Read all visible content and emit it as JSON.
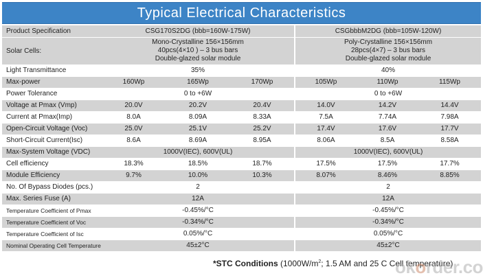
{
  "header": {
    "title": "Typical Electrical Characteristics"
  },
  "rows": [
    {
      "label": "Product Specification",
      "style": "g",
      "left": "CSG170S2DG (bbb=160W-175W)",
      "right": "CSGbbbM2DG (bbb=105W-120W)"
    },
    {
      "label": "Solar Cells:",
      "style": "g",
      "left_lines": [
        "Mono-Crystalline 156×156mm",
        "40pcs(4×10 ) – 3 bus bars",
        "Double-glazed solar module"
      ],
      "right_lines": [
        "Poly-Crystalline 156×156mm",
        "28pcs(4×7) – 3 bus bars",
        "Double-glazed solar module"
      ]
    },
    {
      "label": "Light Transmittance",
      "style": "w",
      "left": "35%",
      "right": "40%"
    },
    {
      "label": "Max-power",
      "style": "g",
      "cells": [
        "160Wp",
        "165Wp",
        "170Wp",
        "105Wp",
        "110Wp",
        "115Wp"
      ]
    },
    {
      "label": "Power Tolerance",
      "style": "w",
      "left": "0 to +6W",
      "right": "0 to +6W"
    },
    {
      "label": "Voltage at Pmax (Vmp)",
      "style": "g",
      "cells": [
        "20.0V",
        "20.2V",
        "20.4V",
        "14.0V",
        "14.2V",
        "14.4V"
      ]
    },
    {
      "label": "Current at Pmax(Imp)",
      "style": "w",
      "cells": [
        "8.0A",
        "8.09A",
        "8.33A",
        "7.5A",
        "7.74A",
        "7.98A"
      ]
    },
    {
      "label": "Open-Circuit Voltage (Voc)",
      "style": "g",
      "cells": [
        "25.0V",
        "25.1V",
        "25.2V",
        "17.4V",
        "17.6V",
        "17.7V"
      ]
    },
    {
      "label": "Short-Circuit Current(Isc)",
      "style": "w",
      "cells": [
        "8.6A",
        "8.69A",
        "8.95A",
        "8.06A",
        "8.5A",
        "8.58A"
      ]
    },
    {
      "label": "Max-System Voltage (VDC)",
      "style": "g",
      "left": "1000V(IEC), 600V(UL)",
      "right": "1000V(IEC), 600V(UL)"
    },
    {
      "label": "Cell efficiency",
      "style": "w",
      "cells": [
        "18.3%",
        "18.5%",
        "18.7%",
        "17.5%",
        "17.5%",
        "17.7%"
      ]
    },
    {
      "label": "Module Efficiency",
      "style": "g",
      "cells": [
        "9.7%",
        "10.0%",
        "10.3%",
        "8.07%",
        "8.46%",
        "8.85%"
      ]
    },
    {
      "label": "No. Of Bypass Diodes (pcs.)",
      "style": "w",
      "left": "2",
      "right": "2"
    },
    {
      "label": "Max. Series Fuse (A)",
      "style": "g",
      "left": "12A",
      "right": "12A"
    },
    {
      "label": "Temperature Coefficient of Pmax",
      "style": "w",
      "small": true,
      "left": "-0.45%/°C",
      "right": "-0.45%/°C"
    },
    {
      "label": "Temperature Coefficient of Voc",
      "style": "g",
      "small": true,
      "left": "-0.34%/°C",
      "right": "-0.34%/°C"
    },
    {
      "label": "Temperature Coefficient of Isc",
      "style": "w",
      "small": true,
      "left": "0.05%/°C",
      "right": "0.05%/°C"
    },
    {
      "label": "Nominal Operating Cell Temperature",
      "style": "g",
      "small": true,
      "left": "45±2°C",
      "right": "45±2°C"
    }
  ],
  "footnote": {
    "bold": "*STC Conditions",
    "text_a": " (1000W/m",
    "sup": "2",
    "text_b": "; 1.5 AM and 25 C Cell temperature)"
  },
  "watermark": {
    "part1": "ok",
    "part2": "o",
    "part3": "rder.com"
  }
}
